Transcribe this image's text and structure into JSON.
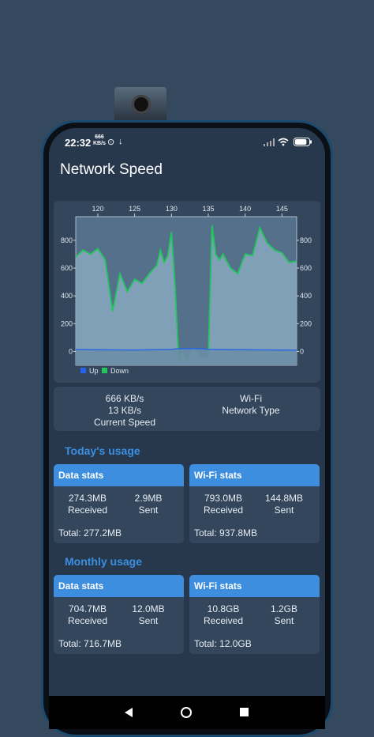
{
  "status_bar": {
    "time": "22:32",
    "net_speed_value": "666",
    "net_speed_unit": "KB/s",
    "battery_level": 0.85
  },
  "app": {
    "title": "Network Speed"
  },
  "chart_data": {
    "type": "area",
    "x_ticks": [
      "120",
      "125",
      "130",
      "135",
      "140",
      "145"
    ],
    "y_ticks_left": [
      "800",
      "600",
      "400",
      "200",
      "0"
    ],
    "y_ticks_right": [
      "800",
      "600",
      "400",
      "200",
      "0"
    ],
    "xlim": [
      117,
      147
    ],
    "ylim": [
      -100,
      970
    ],
    "legend": [
      "Up",
      "Down"
    ],
    "legend_position": "bottom-left",
    "series": [
      {
        "name": "Down",
        "color": "#22c55e",
        "x": [
          117,
          118,
          119,
          120,
          121,
          122,
          123,
          124,
          125,
          126,
          127,
          128,
          128.5,
          129,
          129.5,
          130,
          130.5,
          131,
          131.5,
          132,
          133,
          134,
          135,
          135.5,
          136,
          136.5,
          137,
          138,
          139,
          140,
          141,
          142,
          143,
          144,
          145,
          146,
          147
        ],
        "values": [
          680,
          730,
          700,
          740,
          660,
          290,
          560,
          430,
          520,
          490,
          560,
          620,
          730,
          640,
          690,
          860,
          450,
          -80,
          10,
          -70,
          20,
          -50,
          -40,
          910,
          700,
          660,
          700,
          600,
          560,
          700,
          690,
          890,
          780,
          730,
          710,
          640,
          650
        ]
      },
      {
        "name": "Up",
        "color": "#2563eb",
        "x": [
          117,
          120,
          125,
          130,
          131,
          134,
          135,
          140,
          145,
          147
        ],
        "values": [
          15,
          12,
          10,
          15,
          20,
          20,
          15,
          12,
          10,
          10
        ]
      }
    ]
  },
  "speed": {
    "down_value": "666 KB/s",
    "up_value": "13 KB/s",
    "speed_label": "Current Speed",
    "network_value": "Wi-Fi",
    "network_label": "Network Type"
  },
  "today": {
    "title": "Today's usage",
    "data": {
      "title": "Data stats",
      "received": "274.3MB",
      "received_label": "Received",
      "sent": "2.9MB",
      "sent_label": "Sent",
      "total": "Total: 277.2MB"
    },
    "wifi": {
      "title": "Wi-Fi stats",
      "received": "793.0MB",
      "received_label": "Received",
      "sent": "144.8MB",
      "sent_label": "Sent",
      "total": "Total: 937.8MB"
    }
  },
  "monthly": {
    "title": "Monthly usage",
    "data": {
      "title": "Data stats",
      "received": "704.7MB",
      "received_label": "Received",
      "sent": "12.0MB",
      "sent_label": "Sent",
      "total": "Total: 716.7MB"
    },
    "wifi": {
      "title": "Wi-Fi stats",
      "received": "10.8GB",
      "received_label": "Received",
      "sent": "1.2GB",
      "sent_label": "Sent",
      "total": "Total: 12.0GB"
    }
  },
  "navbar": {
    "back_icon": "back-triangle-icon",
    "home_icon": "home-circle-icon",
    "recents_icon": "recents-square-icon"
  }
}
